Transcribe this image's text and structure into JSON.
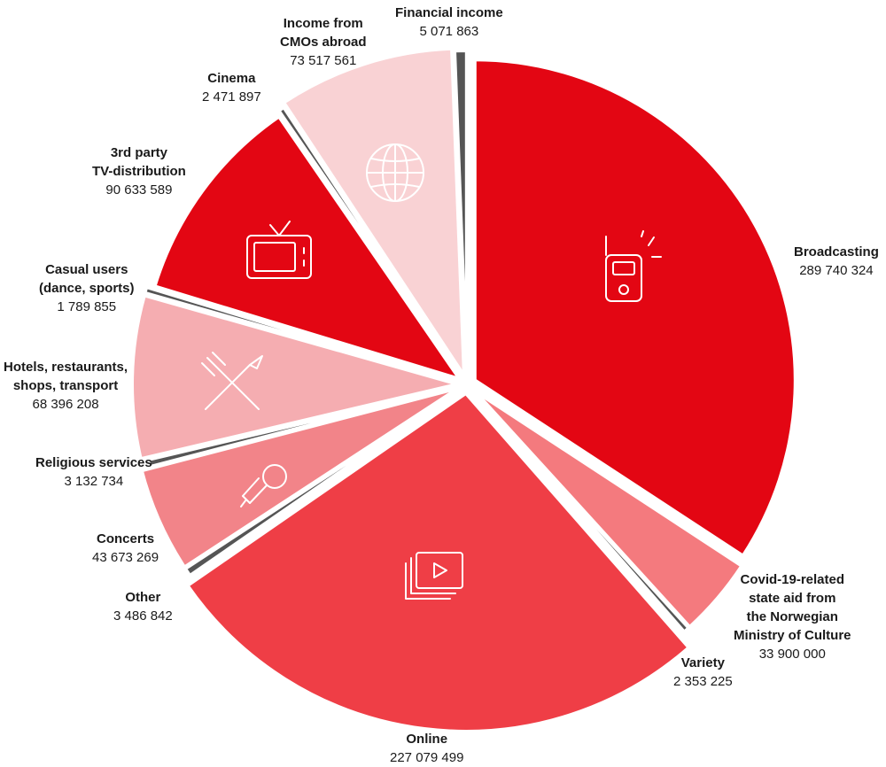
{
  "chart_data": {
    "type": "pie",
    "title": "",
    "slices": [
      {
        "name": "Broadcasting",
        "value": 289740324,
        "value_label": "289 740 324",
        "color": "#e30613",
        "icon": "radio-icon"
      },
      {
        "name": "Covid-19-related state aid from the Norwegian Ministry of Culture",
        "value": 33900000,
        "value_label": "33 900 000",
        "color": "#f47a7e",
        "icon": ""
      },
      {
        "name": "Variety",
        "value": 2353225,
        "value_label": "2 353 225",
        "color": "#555555",
        "icon": ""
      },
      {
        "name": "Online",
        "value": 227079499,
        "value_label": "227 079 499",
        "color": "#ef3e46",
        "icon": "video-library-icon"
      },
      {
        "name": "Other",
        "value": 3486842,
        "value_label": "3 486 842",
        "color": "#555555",
        "icon": ""
      },
      {
        "name": "Concerts",
        "value": 43673269,
        "value_label": "43 673 269",
        "color": "#f28489",
        "icon": "microphone-icon"
      },
      {
        "name": "Religious services",
        "value": 3132734,
        "value_label": "3 132 734",
        "color": "#555555",
        "icon": ""
      },
      {
        "name": "Hotels, restaurants, shops, transport",
        "value": 68396208,
        "value_label": "68 396 208",
        "color": "#f5adb1",
        "icon": "fork-knife-icon"
      },
      {
        "name": "Casual users (dance, sports)",
        "value": 1789855,
        "value_label": "1 789 855",
        "color": "#555555",
        "icon": ""
      },
      {
        "name": "3rd party TV-distribution",
        "value": 90633589,
        "value_label": "90 633 589",
        "color": "#e30613",
        "icon": "tv-icon"
      },
      {
        "name": "Cinema",
        "value": 2471897,
        "value_label": "2 471 897",
        "color": "#555555",
        "icon": ""
      },
      {
        "name": "Income from CMOs abroad",
        "value": 73517561,
        "value_label": "73 517 561",
        "color": "#f9d2d4",
        "icon": "globe-icon"
      },
      {
        "name": "Financial income",
        "value": 5071863,
        "value_label": "5 071 863",
        "color": "#555555",
        "icon": ""
      }
    ]
  },
  "labels": [
    {
      "lines": [
        "Broadcasting"
      ],
      "value": "289 740 324"
    },
    {
      "lines": [
        "Covid-19-related",
        "state aid from",
        "the Norwegian",
        "Ministry of Culture"
      ],
      "value": "33 900 000"
    },
    {
      "lines": [
        "Variety"
      ],
      "value": "2 353 225"
    },
    {
      "lines": [
        "Online"
      ],
      "value": "227 079 499"
    },
    {
      "lines": [
        "Other"
      ],
      "value": "3 486 842"
    },
    {
      "lines": [
        "Concerts"
      ],
      "value": "43 673 269"
    },
    {
      "lines": [
        "Religious services"
      ],
      "value": "3 132 734"
    },
    {
      "lines": [
        "Hotels, restaurants,",
        "shops, transport"
      ],
      "value": "68 396 208"
    },
    {
      "lines": [
        "Casual users",
        "(dance, sports)"
      ],
      "value": "1 789 855"
    },
    {
      "lines": [
        "3rd party",
        "TV-distribution"
      ],
      "value": "90 633 589"
    },
    {
      "lines": [
        "Cinema"
      ],
      "value": "2 471 897"
    },
    {
      "lines": [
        "Income from",
        "CMOs abroad"
      ],
      "value": "73 517 561"
    },
    {
      "lines": [
        "Financial income"
      ],
      "value": "5 071 863"
    }
  ]
}
